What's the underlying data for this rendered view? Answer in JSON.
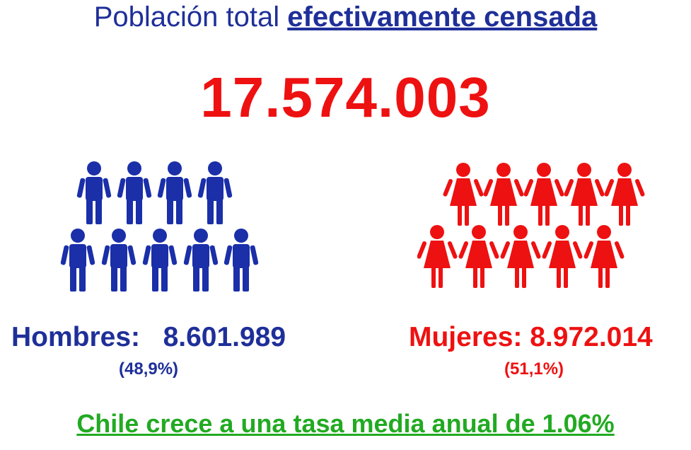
{
  "title": {
    "prefix": "Población total",
    "emphasis": "efectivamente censada"
  },
  "total": "17.574.003",
  "men": {
    "label": "Hombres:",
    "value": "8.601.989",
    "percent": "(48,9%)",
    "color": "#1a2fa8",
    "icon": "male-person-icon"
  },
  "women": {
    "label": "Mujeres:",
    "value": "8.972.014",
    "percent": "(51,1%)",
    "color": "#ee1111",
    "icon": "female-person-icon"
  },
  "footer": "Chile crece a una tasa media anual de 1.06%"
}
